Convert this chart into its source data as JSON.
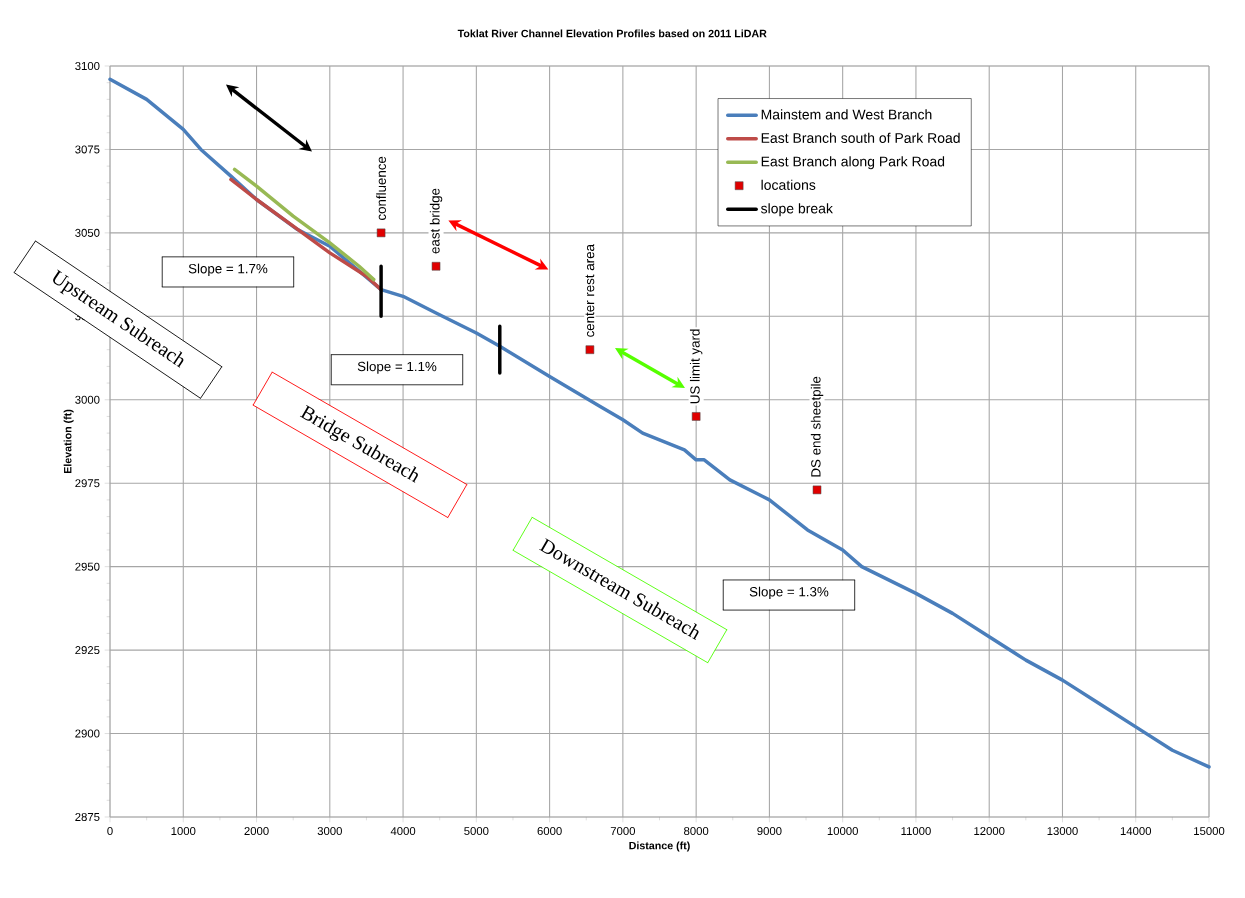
{
  "chart_data": {
    "type": "line",
    "title": "Toklat River Channel Elevation Profiles based on 2011 LiDAR",
    "xlabel": "Distance (ft)",
    "ylabel": "Elevation (ft)",
    "xlim": [
      0,
      15000
    ],
    "ylim": [
      2875,
      3100
    ],
    "xticks": [
      0,
      1000,
      2000,
      3000,
      4000,
      5000,
      6000,
      7000,
      8000,
      9000,
      10000,
      11000,
      12000,
      13000,
      14000,
      15000
    ],
    "yticks": [
      2875,
      2900,
      2925,
      2950,
      2975,
      3000,
      3025,
      3050,
      3075,
      3100
    ],
    "grid": true,
    "legend": "top right",
    "series": [
      {
        "name": "Mainstem and West Branch",
        "color": "#4a7ebb",
        "x": [
          0,
          500,
          1000,
          1240,
          1650,
          2000,
          2560,
          3000,
          3700,
          4000,
          4450,
          5000,
          5320,
          6000,
          6690,
          7000,
          7270,
          7840,
          8000,
          8110,
          8460,
          9000,
          9520,
          10000,
          10260,
          11000,
          11500,
          12000,
          12500,
          13000,
          13500,
          14000,
          14500,
          15000
        ],
        "values": [
          3096,
          3090,
          3081,
          3075,
          3067,
          3060,
          3051,
          3046,
          3033,
          3031,
          3026,
          3020,
          3016,
          3007,
          2998,
          2994,
          2990,
          2985,
          2982,
          2982,
          2976,
          2970,
          2961,
          2955,
          2950,
          2942,
          2936,
          2929,
          2922,
          2916,
          2909,
          2902,
          2895,
          2890
        ]
      },
      {
        "name": "East Branch south of Park Road",
        "color": "#be4b48",
        "x": [
          1650,
          2000,
          2500,
          3000,
          3500,
          3700
        ],
        "values": [
          3066,
          3060,
          3052,
          3044,
          3037,
          3033
        ]
      },
      {
        "name": "East Branch along Park Road",
        "color": "#98b954",
        "x": [
          1700,
          2000,
          2500,
          3000,
          3400,
          3600
        ],
        "values": [
          3069,
          3064,
          3055,
          3047,
          3040,
          3036
        ]
      },
      {
        "name": "locations",
        "type": "scatter",
        "marker": "square",
        "color": "#e00000",
        "x": [
          3700,
          4450,
          6550,
          8000,
          9650
        ],
        "values": [
          3050,
          3040,
          3015,
          2995,
          2973
        ]
      },
      {
        "name": "slope break",
        "color": "#000000",
        "x": [
          3700,
          3700,
          null,
          5320,
          5320
        ],
        "values": [
          3040,
          3025,
          null,
          3022,
          3008
        ]
      }
    ],
    "annotations": [
      "Slope = 1.7%",
      "Slope = 1.1%",
      "Slope = 1.3%",
      "Upstream Subreach",
      "Bridge Subreach",
      "Downstream Subreach",
      {
        "text": "confluence",
        "x": 3700,
        "y": 3050
      },
      {
        "text": "east bridge",
        "x": 4450,
        "y": 3040
      },
      {
        "text": "center rest area",
        "x": 6550,
        "y": 3015
      },
      {
        "text": "US limit yard",
        "x": 8000,
        "y": 2995
      },
      {
        "text": "DS end sheetpile",
        "x": 9650,
        "y": 2973
      }
    ]
  }
}
